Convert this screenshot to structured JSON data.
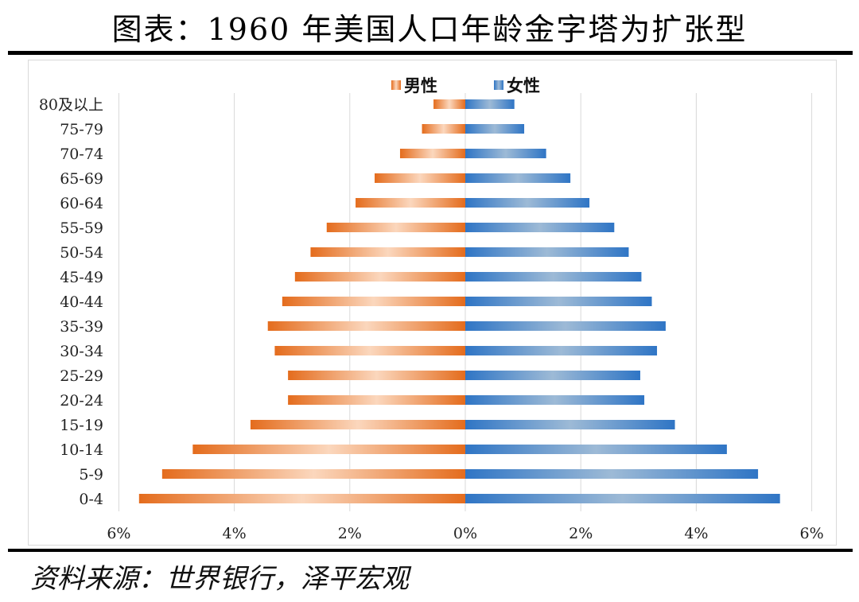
{
  "title": "图表：1960 年美国人口年龄金字塔为扩张型",
  "source": "资料来源：世界银行，泽平宏观",
  "colors": {
    "male_dark": "#e46c1d",
    "male_light": "#fbd7bd",
    "female_dark": "#2f75c5",
    "female_light": "#9dbad6",
    "grid": "#d9d9d9"
  },
  "chart_data": {
    "type": "bar",
    "orientation": "horizontal",
    "title": "图表：1960 年美国人口年龄金字塔为扩张型",
    "xlim": [
      -6,
      6
    ],
    "x_ticks": [
      -6,
      -4,
      -2,
      0,
      2,
      4,
      6
    ],
    "x_tick_labels": [
      "6%",
      "4%",
      "2%",
      "0%",
      "2%",
      "4%",
      "6%"
    ],
    "categories": [
      "0-4",
      "5-9",
      "10-14",
      "15-19",
      "20-24",
      "25-29",
      "30-34",
      "35-39",
      "40-44",
      "45-49",
      "50-54",
      "55-59",
      "60-64",
      "65-69",
      "70-74",
      "75-79",
      "80及以上"
    ],
    "series": [
      {
        "name": "男性",
        "values": [
          5.65,
          5.25,
          4.72,
          3.72,
          3.07,
          3.07,
          3.3,
          3.42,
          3.17,
          2.95,
          2.68,
          2.4,
          1.9,
          1.57,
          1.13,
          0.75,
          0.55
        ]
      },
      {
        "name": "女性",
        "values": [
          5.45,
          5.07,
          4.53,
          3.63,
          3.1,
          3.03,
          3.32,
          3.47,
          3.23,
          3.05,
          2.83,
          2.58,
          2.15,
          1.82,
          1.4,
          1.02,
          0.85
        ]
      }
    ],
    "legend": [
      "男性",
      "女性"
    ],
    "legend_position": "top-center",
    "grid": true
  }
}
